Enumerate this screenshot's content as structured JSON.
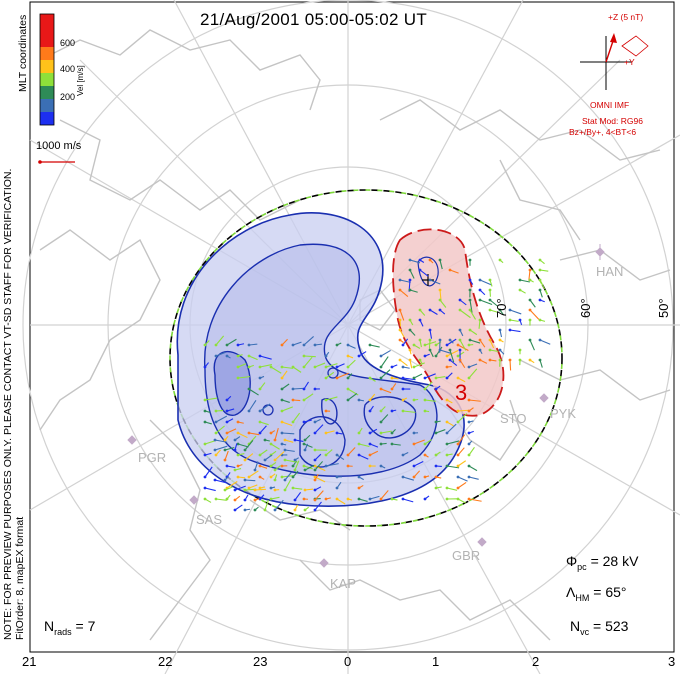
{
  "title": "21/Aug/2001 05:00-05:02 UT",
  "colorbar": {
    "label": "Vel [m/s]",
    "ticks": [
      "600",
      "400",
      "200"
    ],
    "colors": [
      "#e81818",
      "#ff7a1a",
      "#ffc21a",
      "#8ee03a",
      "#2e8b57",
      "#3b6fb5",
      "#1d2ff0"
    ]
  },
  "coord_label": "MLT coordinates",
  "scale_vector": "1000 m/s",
  "imf": {
    "z_label": "+Z (5 nT)",
    "y_label": "+Y",
    "source": "OMNI IMF",
    "model_line1": "Stat Mod: RG96",
    "model_line2": "Bz+/By+, 4<BT<6"
  },
  "notice_line1": "NOTE: FOR PREVIEW PURPOSES ONLY. PLEASE CONTACT VT-SD STAFF FOR VERIFICATION.",
  "notice_line2": "FitOrder: 8, mapEX format",
  "stations": [
    "HAN",
    "PYK",
    "STO",
    "PGR",
    "SAS",
    "GBR",
    "KAP"
  ],
  "latitudes": [
    "70°",
    "60°",
    "50°"
  ],
  "mlt_ticks": [
    "21",
    "22",
    "23",
    "0",
    "1",
    "2",
    "3"
  ],
  "contours": {
    "negative_color": "#1a2fb0",
    "negative_fill": "#c8cdf0",
    "positive_color": "#cc1a1a",
    "positive_fill": "#f2c8c8",
    "label": "3"
  },
  "params": {
    "phi_symbol": "Φ",
    "phi_sub": "pc",
    "phi_value": "= 28 kV",
    "lambda_symbol": "Λ",
    "lambda_sub": "HM",
    "lambda_value": "= 65°",
    "nvc_symbol": "N",
    "nvc_sub": "vc",
    "nvc_value": "= 523",
    "nrads_symbol": "N",
    "nrads_sub": "rads",
    "nrads_value": "= 7"
  }
}
